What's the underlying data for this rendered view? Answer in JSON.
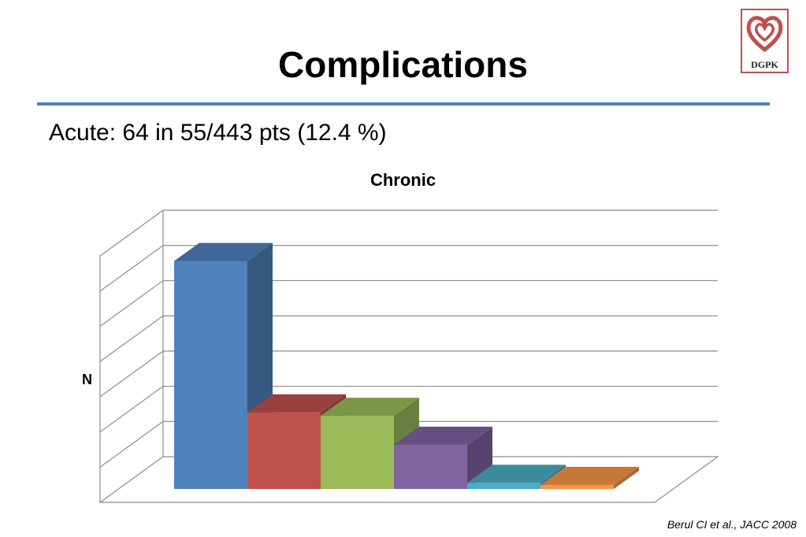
{
  "slide": {
    "title": "Complications",
    "subtitle": "Acute: 64 in 55/443 pts (12.4 %)",
    "citation": "Berul CI et al., JACC 2008"
  },
  "logo": {
    "text": "DGPK",
    "icon": "heart-logo-icon",
    "color": "#c0504d"
  },
  "chart_data": {
    "type": "bar",
    "title": "Chronic",
    "xlabel": "",
    "ylabel": "N",
    "ylim": [
      0,
      7
    ],
    "grid": true,
    "three_d": true,
    "categories": [
      "",
      "",
      "",
      "",
      "",
      ""
    ],
    "values": [
      6.7,
      2.25,
      2.15,
      1.3,
      0.18,
      0.12
    ],
    "colors": [
      "#4f81bd",
      "#c0504d",
      "#9bbb59",
      "#8064a2",
      "#4bacc6",
      "#f79646"
    ]
  }
}
